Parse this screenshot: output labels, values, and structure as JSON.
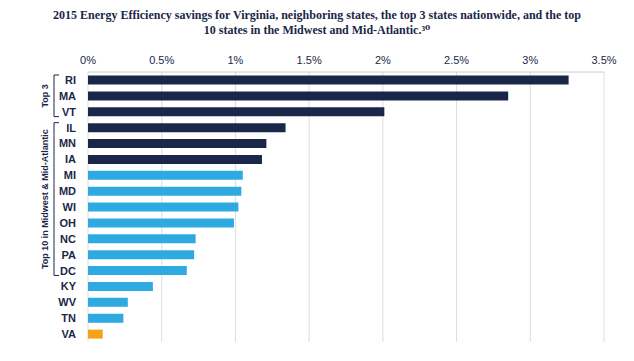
{
  "chart_data": {
    "type": "bar",
    "orientation": "horizontal",
    "title": "2015 Energy Efficiency savings for Virginia, neighboring states, the top 3 states nationwide, and the top 10 states in the Midwest and Mid-Atlantic.³⁰",
    "categories": [
      "RI",
      "MA",
      "VT",
      "IL",
      "MN",
      "IA",
      "MI",
      "MD",
      "WI",
      "OH",
      "NC",
      "PA",
      "DC",
      "KY",
      "WV",
      "TN",
      "VA"
    ],
    "values": [
      3.26,
      2.85,
      2.01,
      1.34,
      1.21,
      1.18,
      1.05,
      1.04,
      1.02,
      0.99,
      0.73,
      0.72,
      0.67,
      0.44,
      0.27,
      0.24,
      0.1
    ],
    "colors": [
      "#1b2748",
      "#1b2748",
      "#1b2748",
      "#1b2748",
      "#1b2748",
      "#1b2748",
      "#2eaae1",
      "#2eaae1",
      "#2eaae1",
      "#2eaae1",
      "#2eaae1",
      "#2eaae1",
      "#2eaae1",
      "#2eaae1",
      "#2eaae1",
      "#2eaae1",
      "#f5a31a"
    ],
    "xlim": [
      0,
      3.5
    ],
    "xticks": [
      {
        "value": 0,
        "label": "0%"
      },
      {
        "value": 0.5,
        "label": "0.5%"
      },
      {
        "value": 1,
        "label": "1%"
      },
      {
        "value": 1.5,
        "label": "1.5%"
      },
      {
        "value": 2,
        "label": "2%"
      },
      {
        "value": 2.5,
        "label": "2.5%"
      },
      {
        "value": 3,
        "label": "3%"
      },
      {
        "value": 3.5,
        "label": "3.5%"
      }
    ],
    "grid": true,
    "groups": [
      {
        "label": "Top 3",
        "categories": [
          "RI",
          "MA",
          "VT"
        ]
      },
      {
        "label": "Top 10 in Midwest & Mid-Atlantic",
        "categories": [
          "IL",
          "MN",
          "IA",
          "MI",
          "MD",
          "WI",
          "OH",
          "NC",
          "PA",
          "DC"
        ]
      }
    ]
  }
}
